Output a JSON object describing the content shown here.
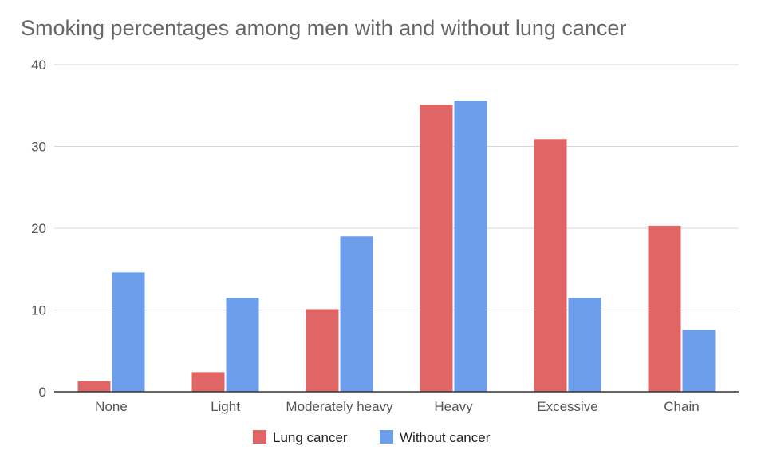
{
  "chart_data": {
    "type": "bar",
    "title": "Smoking percentages among men with and without lung cancer",
    "categories": [
      "None",
      "Light",
      "Moderately heavy",
      "Heavy",
      "Excessive",
      "Chain"
    ],
    "series": [
      {
        "name": "Lung cancer",
        "color": "#e06666",
        "values": [
          1.3,
          2.4,
          10.1,
          35.1,
          30.9,
          20.3
        ]
      },
      {
        "name": "Without cancer",
        "color": "#6d9eeb",
        "values": [
          14.6,
          11.5,
          19.0,
          35.6,
          11.5,
          7.6
        ]
      }
    ],
    "yticks": [
      "0",
      "10",
      "20",
      "30",
      "40"
    ],
    "ylim": [
      0,
      40
    ],
    "xlabel": "",
    "ylabel": "",
    "grid": true,
    "legend_position": "bottom"
  }
}
